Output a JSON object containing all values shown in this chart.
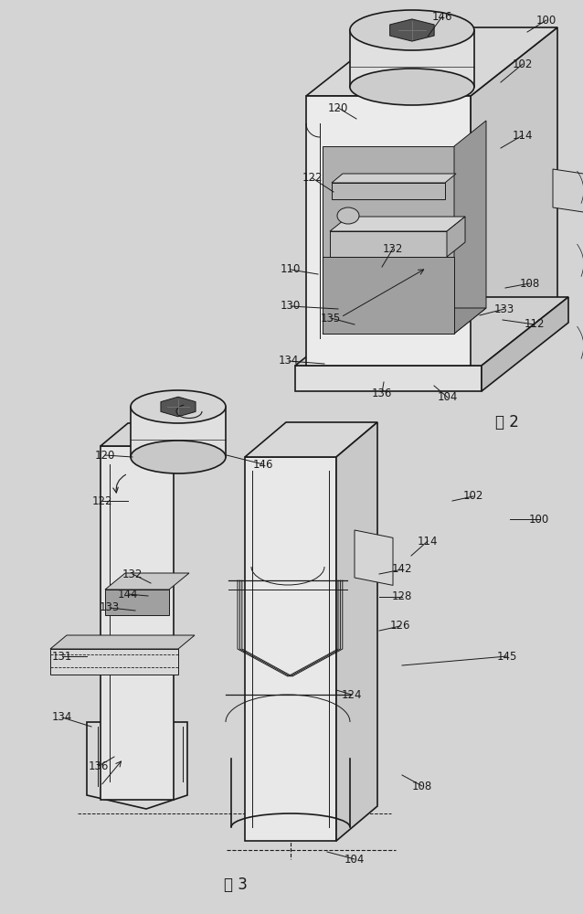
{
  "background_color": "#d4d4d4",
  "line_color": "#1a1a1a",
  "white": "#f0f0f0",
  "light_gray": "#c8c8c8",
  "mid_gray": "#a8a8a8",
  "dark_gray": "#888888",
  "label_fontsize": 8.5,
  "caption_fontsize": 12,
  "fig2_caption": "图 2",
  "fig3_caption": "图 3"
}
